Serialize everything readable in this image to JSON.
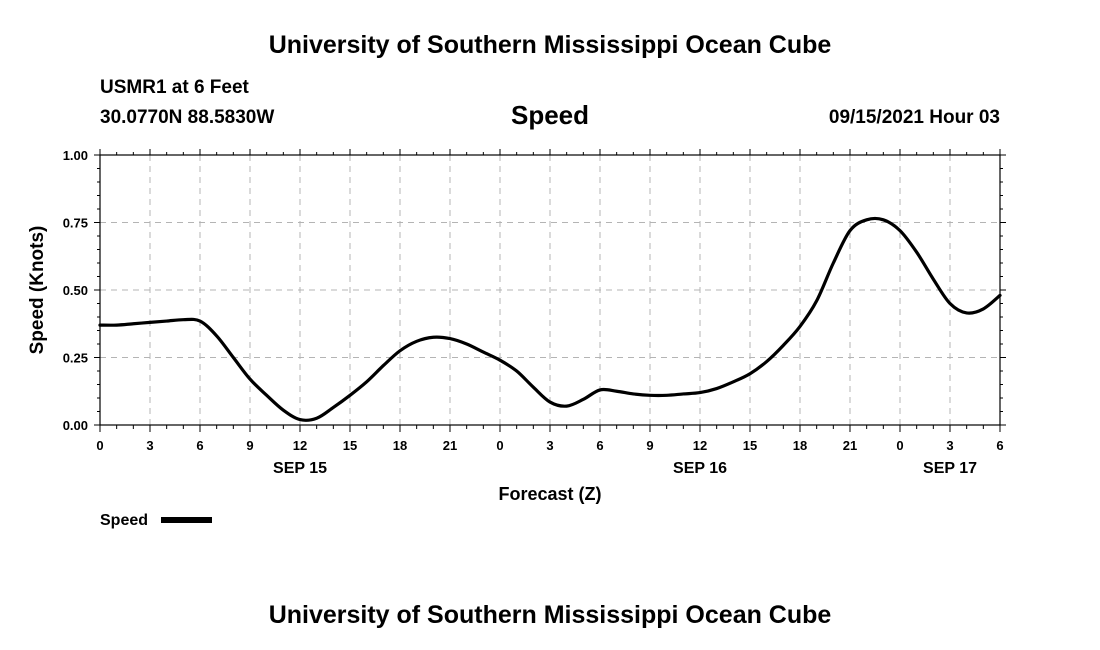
{
  "header": {
    "title": "University of Southern Mississippi Ocean Cube",
    "station": "USMR1 at 6 Feet",
    "coords": "30.0770N  88.5830W",
    "variable": "Speed",
    "datetime": "09/15/2021 Hour 03"
  },
  "footer": {
    "title": "University of Southern Mississippi Ocean Cube"
  },
  "colors": {
    "line": "#000000",
    "grid": "#b4b4b4",
    "axis": "#000000"
  },
  "chart_data": {
    "type": "line",
    "title": "Speed",
    "xlabel": "Forecast (Z)",
    "ylabel": "Speed (Knots)",
    "xlim": [
      0,
      54
    ],
    "ylim": [
      0,
      1
    ],
    "grid": true,
    "x_tick_values": [
      0,
      3,
      6,
      9,
      12,
      15,
      18,
      21,
      24,
      27,
      30,
      33,
      36,
      39,
      42,
      45,
      48,
      51,
      54
    ],
    "x_tick_labels": [
      "0",
      "3",
      "6",
      "9",
      "12",
      "15",
      "18",
      "21",
      "0",
      "3",
      "6",
      "9",
      "12",
      "15",
      "18",
      "21",
      "0",
      "3",
      "6"
    ],
    "y_tick_values": [
      0,
      0.25,
      0.5,
      0.75,
      1.0
    ],
    "y_tick_labels": [
      "0.00",
      "0.25",
      "0.50",
      "0.75",
      "1.00"
    ],
    "date_labels": [
      {
        "x": 12,
        "label": "SEP 15"
      },
      {
        "x": 36,
        "label": "SEP 16"
      },
      {
        "x": 51,
        "label": "SEP 17"
      }
    ],
    "legend": {
      "label": "Speed",
      "position": "bottom-left"
    },
    "series": [
      {
        "name": "Speed",
        "x": [
          0,
          1,
          2,
          3,
          4,
          5,
          6,
          7,
          8,
          9,
          10,
          11,
          12,
          13,
          14,
          15,
          16,
          17,
          18,
          19,
          20,
          21,
          22,
          23,
          24,
          25,
          26,
          27,
          28,
          29,
          30,
          31,
          32,
          33,
          34,
          35,
          36,
          37,
          38,
          39,
          40,
          41,
          42,
          43,
          44,
          45,
          46,
          47,
          48,
          49,
          50,
          51,
          52,
          53,
          54
        ],
        "values": [
          0.37,
          0.37,
          0.375,
          0.38,
          0.385,
          0.39,
          0.385,
          0.33,
          0.25,
          0.17,
          0.11,
          0.055,
          0.02,
          0.025,
          0.065,
          0.11,
          0.16,
          0.22,
          0.275,
          0.31,
          0.325,
          0.32,
          0.3,
          0.27,
          0.24,
          0.2,
          0.14,
          0.085,
          0.07,
          0.095,
          0.13,
          0.125,
          0.115,
          0.11,
          0.11,
          0.115,
          0.12,
          0.135,
          0.16,
          0.19,
          0.235,
          0.295,
          0.365,
          0.46,
          0.6,
          0.72,
          0.76,
          0.76,
          0.72,
          0.64,
          0.54,
          0.45,
          0.415,
          0.43,
          0.48
        ]
      }
    ]
  }
}
